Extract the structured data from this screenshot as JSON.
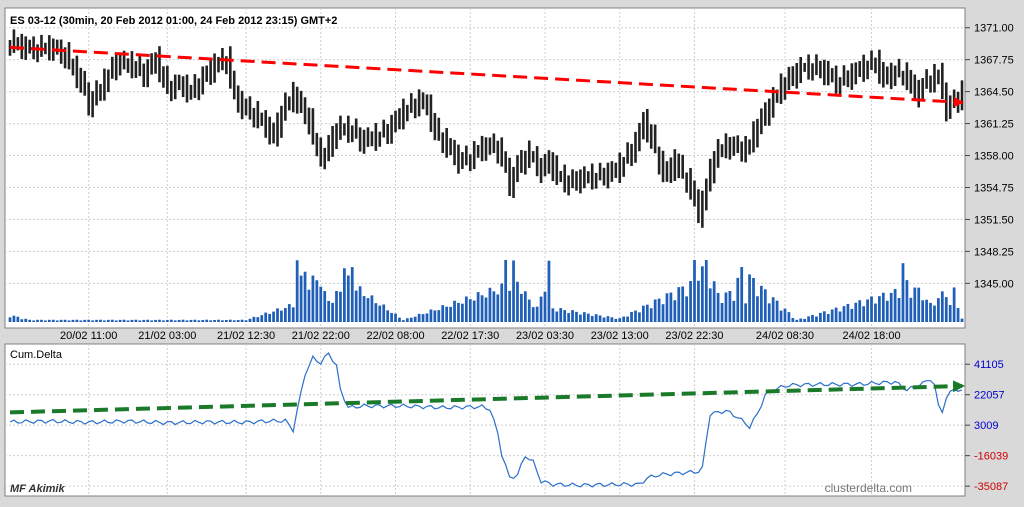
{
  "chart_data": [
    {
      "type": "candlestick",
      "title": "ES 03-12 (30min, 20 Feb 2012 01:00, 24 Feb 2012 23:15) GMT+2",
      "y_ticks": [
        "1371.00",
        "1367.75",
        "1364.50",
        "1361.25",
        "1358.00",
        "1354.75",
        "1351.50",
        "1348.25",
        "1345.00"
      ],
      "ylim": [
        1343.0,
        1372.6
      ],
      "x_ticks": [
        "20/02 11:00",
        "21/02 03:00",
        "21/02 12:30",
        "21/02 22:00",
        "22/02 08:00",
        "22/02 17:30",
        "23/02 03:30",
        "23/02 13:00",
        "23/02 22:30",
        "24/02 08:30",
        "24/02 18:00"
      ],
      "close_path": [
        [
          0,
          1369.5
        ],
        [
          5,
          1368.8
        ],
        [
          10,
          1369.0
        ],
        [
          14,
          1368.2
        ],
        [
          18,
          1365.5
        ],
        [
          20,
          1363.2
        ],
        [
          24,
          1365.5
        ],
        [
          27,
          1367.5
        ],
        [
          31,
          1367.2
        ],
        [
          34,
          1366.2
        ],
        [
          37,
          1367.8
        ],
        [
          40,
          1364.8
        ],
        [
          43,
          1365.2
        ],
        [
          46,
          1364.5
        ],
        [
          49,
          1365.8
        ],
        [
          52,
          1367.2
        ],
        [
          55,
          1367.8
        ],
        [
          57,
          1364.0
        ],
        [
          59,
          1363.0
        ],
        [
          62,
          1362.2
        ],
        [
          65,
          1361.0
        ],
        [
          67,
          1359.8
        ],
        [
          69,
          1362.5
        ],
        [
          72,
          1364.2
        ],
        [
          74,
          1362.8
        ],
        [
          76,
          1361.5
        ],
        [
          78,
          1358.5
        ],
        [
          80,
          1357.8
        ],
        [
          82,
          1360.0
        ],
        [
          84,
          1360.8
        ],
        [
          87,
          1360.5
        ],
        [
          89,
          1359.5
        ],
        [
          92,
          1359.8
        ],
        [
          96,
          1360.5
        ],
        [
          100,
          1362.5
        ],
        [
          104,
          1363.5
        ],
        [
          106,
          1363.0
        ],
        [
          108,
          1360.5
        ],
        [
          111,
          1359.0
        ],
        [
          114,
          1357.5
        ],
        [
          117,
          1357.8
        ],
        [
          120,
          1358.8
        ],
        [
          123,
          1359.0
        ],
        [
          125,
          1358.0
        ],
        [
          127,
          1355.0
        ],
        [
          129,
          1357.0
        ],
        [
          132,
          1358.2
        ],
        [
          135,
          1356.5
        ],
        [
          137,
          1357.5
        ],
        [
          139,
          1356.0
        ],
        [
          142,
          1355.2
        ],
        [
          144,
          1355.5
        ],
        [
          147,
          1355.8
        ],
        [
          151,
          1356.0
        ],
        [
          154,
          1356.5
        ],
        [
          157,
          1358.0
        ],
        [
          159,
          1359.2
        ],
        [
          161,
          1361.5
        ],
        [
          163,
          1359.8
        ],
        [
          165,
          1357.2
        ],
        [
          167,
          1356.0
        ],
        [
          169,
          1357.5
        ],
        [
          171,
          1356.0
        ],
        [
          173,
          1354.8
        ],
        [
          175,
          1352.0
        ],
        [
          177,
          1354.8
        ],
        [
          179,
          1358.0
        ],
        [
          182,
          1359.0
        ],
        [
          185,
          1358.8
        ],
        [
          187,
          1358.5
        ],
        [
          190,
          1361.0
        ],
        [
          193,
          1363.0
        ],
        [
          196,
          1365.0
        ],
        [
          198,
          1365.8
        ],
        [
          201,
          1366.8
        ],
        [
          204,
          1367.0
        ],
        [
          207,
          1366.5
        ],
        [
          210,
          1365.5
        ],
        [
          214,
          1366.2
        ],
        [
          217,
          1367.0
        ],
        [
          220,
          1367.5
        ],
        [
          222,
          1365.8
        ],
        [
          225,
          1366.5
        ],
        [
          228,
          1366.0
        ],
        [
          230,
          1364.2
        ],
        [
          233,
          1365.5
        ],
        [
          236,
          1366.2
        ],
        [
          237,
          1364.5
        ],
        [
          238,
          1362.8
        ],
        [
          240,
          1363.5
        ],
        [
          242,
          1364.3
        ]
      ],
      "volume_peaks": [
        [
          0,
          0.1
        ],
        [
          5,
          0.03
        ],
        [
          60,
          0.03
        ],
        [
          72,
          0.25
        ],
        [
          73,
          0.95
        ],
        [
          74,
          0.6
        ],
        [
          75,
          0.85
        ],
        [
          76,
          0.5
        ],
        [
          78,
          0.7
        ],
        [
          80,
          0.4
        ],
        [
          82,
          0.3
        ],
        [
          84,
          0.5
        ],
        [
          85,
          0.85
        ],
        [
          86,
          0.6
        ],
        [
          87,
          0.9
        ],
        [
          88,
          0.5
        ],
        [
          100,
          0.03
        ],
        [
          125,
          0.5
        ],
        [
          126,
          0.95
        ],
        [
          127,
          0.55
        ],
        [
          128,
          0.8
        ],
        [
          129,
          0.6
        ],
        [
          130,
          0.5
        ],
        [
          131,
          0.4
        ],
        [
          134,
          0.2
        ],
        [
          136,
          0.55
        ],
        [
          137,
          0.8
        ],
        [
          138,
          0.2
        ],
        [
          155,
          0.05
        ],
        [
          173,
          0.55
        ],
        [
          174,
          1.0
        ],
        [
          175,
          0.85
        ],
        [
          176,
          0.75
        ],
        [
          177,
          0.95
        ],
        [
          178,
          0.7
        ],
        [
          180,
          0.4
        ],
        [
          182,
          0.4
        ],
        [
          184,
          0.45
        ],
        [
          186,
          0.75
        ],
        [
          187,
          0.4
        ],
        [
          188,
          0.65
        ],
        [
          200,
          0.03
        ],
        [
          226,
          0.45
        ],
        [
          227,
          0.85
        ],
        [
          228,
          0.55
        ],
        [
          229,
          0.45
        ],
        [
          230,
          0.5
        ],
        [
          232,
          0.4
        ],
        [
          234,
          0.25
        ],
        [
          236,
          0.35
        ],
        [
          238,
          0.45
        ],
        [
          239,
          0.25
        ],
        [
          240,
          0.45
        ],
        [
          242,
          0.05
        ]
      ],
      "trend_arrow": {
        "from": [
          0,
          1369.0
        ],
        "to": [
          242,
          1363.4
        ],
        "color": "#ff0000"
      }
    },
    {
      "type": "line",
      "title": "Cum.Delta",
      "y_ticks": [
        "41105",
        "22057",
        "3009",
        "-16039",
        "-35087"
      ],
      "y_tick_colors": [
        "#0000cc",
        "#0000cc",
        "#0000cc",
        "#cc0000",
        "#cc0000"
      ],
      "ylim": [
        -40000,
        50000
      ],
      "x_ticks": [
        "20/02 11:00",
        "21/02 03:00",
        "21/02 12:30",
        "21/02 22:00",
        "22/02 08:00",
        "22/02 17:30",
        "23/02 03:30",
        "23/02 13:00",
        "23/02 22:30",
        "24/02 08:30",
        "24/02 18:00"
      ],
      "points": [
        [
          0,
          5000
        ],
        [
          10,
          5500
        ],
        [
          20,
          4800
        ],
        [
          30,
          5500
        ],
        [
          40,
          4500
        ],
        [
          50,
          5000
        ],
        [
          60,
          4800
        ],
        [
          65,
          5500
        ],
        [
          70,
          5800
        ],
        [
          72,
          0
        ],
        [
          73,
          12000
        ],
        [
          75,
          35000
        ],
        [
          77,
          45000
        ],
        [
          79,
          42000
        ],
        [
          81,
          48000
        ],
        [
          83,
          40000
        ],
        [
          84,
          25000
        ],
        [
          86,
          14000
        ],
        [
          90,
          15000
        ],
        [
          100,
          15000
        ],
        [
          110,
          14000
        ],
        [
          120,
          14500
        ],
        [
          122,
          13000
        ],
        [
          124,
          -2000
        ],
        [
          125,
          -15000
        ],
        [
          127,
          -30000
        ],
        [
          129,
          -28000
        ],
        [
          131,
          -16000
        ],
        [
          133,
          -20000
        ],
        [
          135,
          -32000
        ],
        [
          138,
          -34000
        ],
        [
          145,
          -34500
        ],
        [
          155,
          -34000
        ],
        [
          160,
          -34000
        ],
        [
          162,
          -30000
        ],
        [
          165,
          -28000
        ],
        [
          170,
          -27000
        ],
        [
          175,
          -26000
        ],
        [
          176,
          -24000
        ],
        [
          177,
          -6000
        ],
        [
          178,
          10000
        ],
        [
          182,
          12000
        ],
        [
          185,
          8000
        ],
        [
          187,
          4000
        ],
        [
          188,
          2000
        ],
        [
          190,
          10000
        ],
        [
          192,
          22000
        ],
        [
          195,
          26000
        ],
        [
          198,
          28000
        ],
        [
          205,
          28500
        ],
        [
          215,
          28500
        ],
        [
          225,
          30000
        ],
        [
          228,
          25000
        ],
        [
          230,
          27000
        ],
        [
          232,
          29000
        ],
        [
          234,
          32000
        ],
        [
          235,
          28000
        ],
        [
          236,
          15000
        ],
        [
          237,
          12000
        ],
        [
          238,
          20000
        ],
        [
          240,
          26000
        ],
        [
          242,
          24000
        ]
      ],
      "trend_arrow": {
        "from": [
          0,
          11000
        ],
        "to": [
          242,
          27500
        ],
        "color": "#1a7a2a"
      }
    }
  ],
  "footer": {
    "logo": "MF Akimik",
    "site": "clusterdelta.com"
  }
}
